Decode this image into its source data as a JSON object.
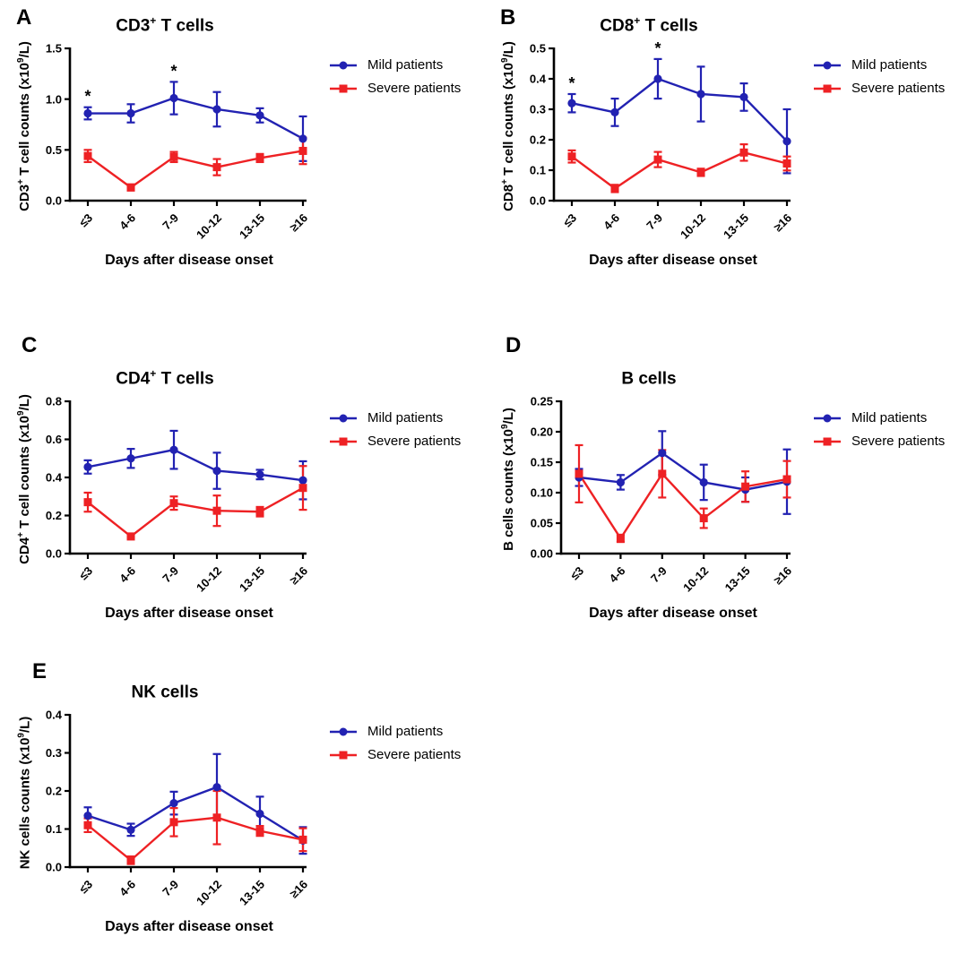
{
  "figure": {
    "background": "#ffffff"
  },
  "colors": {
    "mild": "#2222b2",
    "severe": "#ee2124",
    "axis": "#000000"
  },
  "legend": {
    "mild": "Mild patients",
    "severe": "Severe patients",
    "position": "right-top"
  },
  "chart_data": [
    {
      "panel_label": "A",
      "type": "line",
      "title_pre": "CD3",
      "title_sup": "+",
      "title_post": " T cells",
      "ylabel_pre": "CD3",
      "ylabel_sup": "+",
      "ylabel_mid": " T cell counts (x10",
      "ylabel_sup2": "9",
      "ylabel_post": "/L)",
      "xlabel": "Days after disease onset",
      "categories": [
        "≤3",
        "4-6",
        "7-9",
        "10-12",
        "13-15",
        "≥16"
      ],
      "ylim": [
        0,
        1.5
      ],
      "ytick_vals": [
        0,
        0.5,
        1.0,
        1.5
      ],
      "ytick_labels": [
        "0.0",
        "0.5",
        "1.0",
        "1.5"
      ],
      "grid": false,
      "series": [
        {
          "name": "Mild patients",
          "marker": "circle",
          "color_key": "mild",
          "values": [
            0.86,
            0.86,
            1.01,
            0.9,
            0.84,
            0.61
          ],
          "errors": [
            0.06,
            0.09,
            0.16,
            0.17,
            0.07,
            0.22
          ]
        },
        {
          "name": "Severe patients",
          "marker": "square",
          "color_key": "severe",
          "values": [
            0.44,
            0.13,
            0.43,
            0.33,
            0.42,
            0.49
          ],
          "errors": [
            0.06,
            0.03,
            0.05,
            0.08,
            0.04,
            0.13
          ]
        }
      ],
      "significance": [
        {
          "index": 0,
          "symbol": "*"
        },
        {
          "index": 2,
          "symbol": "*"
        }
      ]
    },
    {
      "panel_label": "B",
      "type": "line",
      "title_pre": "CD8",
      "title_sup": "+",
      "title_post": " T cells",
      "ylabel_pre": "CD8",
      "ylabel_sup": "+",
      "ylabel_mid": " T cell counts (x10",
      "ylabel_sup2": "9",
      "ylabel_post": "/L)",
      "xlabel": "Days after disease onset",
      "categories": [
        "≤3",
        "4-6",
        "7-9",
        "10-12",
        "13-15",
        "≥16"
      ],
      "ylim": [
        0,
        0.5
      ],
      "ytick_vals": [
        0,
        0.1,
        0.2,
        0.3,
        0.4,
        0.5
      ],
      "ytick_labels": [
        "0.0",
        "0.1",
        "0.2",
        "0.3",
        "0.4",
        "0.5"
      ],
      "grid": false,
      "series": [
        {
          "name": "Mild patients",
          "marker": "circle",
          "color_key": "mild",
          "values": [
            0.32,
            0.29,
            0.4,
            0.35,
            0.34,
            0.195
          ],
          "errors": [
            0.03,
            0.045,
            0.065,
            0.09,
            0.045,
            0.105
          ]
        },
        {
          "name": "Severe patients",
          "marker": "square",
          "color_key": "severe",
          "values": [
            0.145,
            0.04,
            0.135,
            0.093,
            0.158,
            0.122
          ],
          "errors": [
            0.02,
            0.012,
            0.025,
            0.012,
            0.027,
            0.023
          ]
        }
      ],
      "significance": [
        {
          "index": 0,
          "symbol": "*"
        },
        {
          "index": 2,
          "symbol": "*"
        }
      ]
    },
    {
      "panel_label": "C",
      "type": "line",
      "title_pre": "CD4",
      "title_sup": "+",
      "title_post": " T cells",
      "ylabel_pre": "CD4",
      "ylabel_sup": "+",
      "ylabel_mid": " T cell counts (x10",
      "ylabel_sup2": "9",
      "ylabel_post": "/L)",
      "xlabel": "Days after disease onset",
      "categories": [
        "≤3",
        "4-6",
        "7-9",
        "10-12",
        "13-15",
        "≥16"
      ],
      "ylim": [
        0,
        0.8
      ],
      "ytick_vals": [
        0,
        0.2,
        0.4,
        0.6,
        0.8
      ],
      "ytick_labels": [
        "0.0",
        "0.2",
        "0.4",
        "0.6",
        "0.8"
      ],
      "grid": false,
      "series": [
        {
          "name": "Mild patients",
          "marker": "circle",
          "color_key": "mild",
          "values": [
            0.455,
            0.5,
            0.545,
            0.435,
            0.415,
            0.385
          ],
          "errors": [
            0.035,
            0.05,
            0.1,
            0.095,
            0.025,
            0.1
          ]
        },
        {
          "name": "Severe patients",
          "marker": "square",
          "color_key": "severe",
          "values": [
            0.27,
            0.09,
            0.265,
            0.225,
            0.22,
            0.345
          ],
          "errors": [
            0.05,
            0.015,
            0.035,
            0.08,
            0.025,
            0.115
          ]
        }
      ],
      "significance": []
    },
    {
      "panel_label": "D",
      "type": "line",
      "title_pre": "B cells",
      "title_sup": "",
      "title_post": "",
      "ylabel_pre": "B cells counts (x10",
      "ylabel_sup": "9",
      "ylabel_mid": "/L)",
      "ylabel_sup2": "",
      "ylabel_post": "",
      "xlabel": "Days after disease onset",
      "categories": [
        "≤3",
        "4-6",
        "7-9",
        "10-12",
        "13-15",
        "≥16"
      ],
      "ylim": [
        0,
        0.25
      ],
      "ytick_vals": [
        0,
        0.05,
        0.1,
        0.15,
        0.2,
        0.25
      ],
      "ytick_labels": [
        "0.00",
        "0.05",
        "0.10",
        "0.15",
        "0.20",
        "0.25"
      ],
      "grid": false,
      "series": [
        {
          "name": "Mild patients",
          "marker": "circle",
          "color_key": "mild",
          "values": [
            0.125,
            0.117,
            0.165,
            0.117,
            0.105,
            0.118
          ],
          "errors": [
            0.014,
            0.012,
            0.036,
            0.029,
            0.02,
            0.053
          ]
        },
        {
          "name": "Severe patients",
          "marker": "square",
          "color_key": "severe",
          "values": [
            0.131,
            0.025,
            0.131,
            0.058,
            0.11,
            0.122
          ],
          "errors": [
            0.047,
            0.006,
            0.039,
            0.016,
            0.025,
            0.03
          ]
        }
      ],
      "significance": []
    },
    {
      "panel_label": "E",
      "type": "line",
      "title_pre": "NK cells",
      "title_sup": "",
      "title_post": "",
      "ylabel_pre": "NK cells counts (x10",
      "ylabel_sup": "9",
      "ylabel_mid": "/L)",
      "ylabel_sup2": "",
      "ylabel_post": "",
      "xlabel": "Days after disease onset",
      "categories": [
        "≤3",
        "4-6",
        "7-9",
        "10-12",
        "13-15",
        "≥16"
      ],
      "ylim": [
        0,
        0.4
      ],
      "ytick_vals": [
        0,
        0.1,
        0.2,
        0.3,
        0.4
      ],
      "ytick_labels": [
        "0.0",
        "0.1",
        "0.2",
        "0.3",
        "0.4"
      ],
      "grid": false,
      "series": [
        {
          "name": "Mild patients",
          "marker": "circle",
          "color_key": "mild",
          "values": [
            0.135,
            0.098,
            0.168,
            0.21,
            0.14,
            0.07
          ],
          "errors": [
            0.022,
            0.016,
            0.03,
            0.087,
            0.045,
            0.035
          ]
        },
        {
          "name": "Severe patients",
          "marker": "square",
          "color_key": "severe",
          "values": [
            0.11,
            0.018,
            0.118,
            0.13,
            0.095,
            0.072
          ],
          "errors": [
            0.018,
            0.01,
            0.037,
            0.07,
            0.013,
            0.03
          ]
        }
      ],
      "significance": []
    }
  ]
}
